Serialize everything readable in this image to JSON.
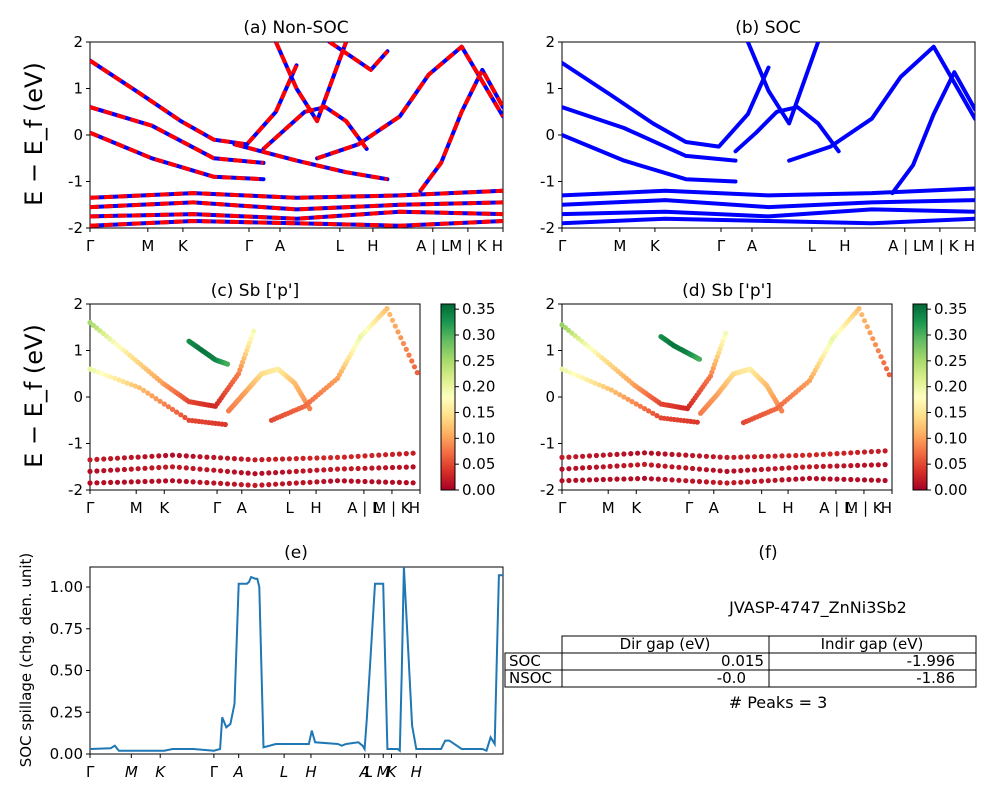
{
  "figure": {
    "band_axis_label": "E − E_f (eV)",
    "tick_labels": [
      "Γ",
      "M",
      "K",
      "Γ",
      "A",
      "L",
      "H",
      "A | L",
      "M | K",
      "H"
    ],
    "spillage_tick_labels": [
      "Γ",
      "M",
      "K",
      "Γ",
      "A",
      "L",
      "H",
      "A",
      "L",
      "M",
      "K",
      "H"
    ],
    "colors": {
      "soc_band": "#0000ff",
      "nsoc_band": "#ff0000",
      "spillage_line": "#1f77b4"
    }
  },
  "chart_data": [
    {
      "id": "a",
      "type": "line",
      "title": "(a) Non-SOC",
      "ylabel": "E − E_f (eV)",
      "ylim": [
        -2,
        2
      ],
      "yticks": [
        -2,
        -1,
        0,
        1,
        2
      ],
      "series": [
        {
          "style": "blue-red-dashed",
          "x": [
            0,
            0.12,
            0.22,
            0.3,
            0.38,
            0.45,
            0.5
          ],
          "y": [
            1.6,
            0.9,
            0.3,
            -0.1,
            -0.2,
            0.5,
            1.5
          ]
        },
        {
          "style": "blue-red-dashed",
          "x": [
            0,
            0.15,
            0.3,
            0.42
          ],
          "y": [
            0.6,
            0.2,
            -0.5,
            -0.6
          ]
        },
        {
          "style": "blue-red-dashed",
          "x": [
            0,
            0.15,
            0.3,
            0.42
          ],
          "y": [
            0.05,
            -0.5,
            -0.9,
            -0.95
          ]
        },
        {
          "style": "blue-red-dashed",
          "x": [
            0.42,
            0.47,
            0.52,
            0.57,
            0.62,
            0.67
          ],
          "y": [
            -0.3,
            0.1,
            0.5,
            0.6,
            0.3,
            -0.3
          ]
        },
        {
          "style": "blue-red-dashed",
          "x": [
            0.35,
            0.5,
            0.62,
            0.72
          ],
          "y": [
            -0.2,
            -0.55,
            -0.8,
            -0.95
          ]
        },
        {
          "style": "blue-red-dashed",
          "x": [
            0.55,
            0.65,
            0.75,
            0.82,
            0.9,
            1.0
          ],
          "y": [
            -0.5,
            -0.2,
            0.4,
            1.3,
            1.9,
            0.4
          ]
        },
        {
          "style": "blue-red-dashed",
          "x": [
            0.8,
            0.85,
            0.9,
            0.95,
            1.0
          ],
          "y": [
            -1.2,
            -0.6,
            0.5,
            1.4,
            0.6
          ]
        },
        {
          "style": "blue-red-dashed",
          "x": [
            0.45,
            0.5,
            0.55,
            0.62
          ],
          "y": [
            2.0,
            1.0,
            0.3,
            2.0
          ]
        },
        {
          "style": "blue-red-dashed",
          "x": [
            0.58,
            0.63,
            0.68,
            0.72
          ],
          "y": [
            2.0,
            1.7,
            1.4,
            1.8
          ]
        },
        {
          "style": "blue-red-dashed",
          "x": [
            0,
            0.25,
            0.5,
            0.75,
            1.0
          ],
          "y": [
            -1.35,
            -1.25,
            -1.35,
            -1.3,
            -1.2
          ]
        },
        {
          "style": "blue-red-dashed",
          "x": [
            0,
            0.25,
            0.5,
            0.75,
            1.0
          ],
          "y": [
            -1.55,
            -1.45,
            -1.6,
            -1.5,
            -1.45
          ]
        },
        {
          "style": "blue-red-dashed",
          "x": [
            0,
            0.25,
            0.5,
            0.75,
            1.0
          ],
          "y": [
            -1.75,
            -1.7,
            -1.8,
            -1.65,
            -1.7
          ]
        },
        {
          "style": "blue-red-dashed",
          "x": [
            0,
            0.25,
            0.5,
            0.75,
            1.0
          ],
          "y": [
            -1.95,
            -1.85,
            -1.9,
            -1.95,
            -1.85
          ]
        }
      ]
    },
    {
      "id": "b",
      "type": "line",
      "title": "(b) SOC",
      "ylabel": "",
      "ylim": [
        -2,
        2
      ],
      "yticks": [
        -2,
        -1,
        0,
        1,
        2
      ],
      "series": [
        {
          "style": "blue",
          "x": [
            0,
            0.12,
            0.22,
            0.3,
            0.38,
            0.45,
            0.5
          ],
          "y": [
            1.55,
            0.85,
            0.25,
            -0.15,
            -0.25,
            0.45,
            1.45
          ]
        },
        {
          "style": "blue",
          "x": [
            0,
            0.15,
            0.3,
            0.42
          ],
          "y": [
            0.6,
            0.15,
            -0.45,
            -0.55
          ]
        },
        {
          "style": "blue",
          "x": [
            0,
            0.15,
            0.3,
            0.42
          ],
          "y": [
            0.0,
            -0.55,
            -0.95,
            -1.0
          ]
        },
        {
          "style": "blue",
          "x": [
            0.42,
            0.47,
            0.52,
            0.57,
            0.62,
            0.67
          ],
          "y": [
            -0.35,
            0.05,
            0.5,
            0.6,
            0.25,
            -0.35
          ]
        },
        {
          "style": "blue",
          "x": [
            0.55,
            0.65,
            0.75,
            0.82,
            0.9,
            1.0
          ],
          "y": [
            -0.55,
            -0.25,
            0.35,
            1.25,
            1.9,
            0.35
          ]
        },
        {
          "style": "blue",
          "x": [
            0.8,
            0.85,
            0.9,
            0.95,
            1.0
          ],
          "y": [
            -1.25,
            -0.65,
            0.45,
            1.35,
            0.55
          ]
        },
        {
          "style": "blue",
          "x": [
            0.45,
            0.5,
            0.55,
            0.62
          ],
          "y": [
            2.0,
            0.95,
            0.25,
            2.0
          ]
        },
        {
          "style": "blue",
          "x": [
            0,
            0.25,
            0.5,
            0.75,
            1.0
          ],
          "y": [
            -1.3,
            -1.2,
            -1.3,
            -1.25,
            -1.15
          ]
        },
        {
          "style": "blue",
          "x": [
            0,
            0.25,
            0.5,
            0.75,
            1.0
          ],
          "y": [
            -1.5,
            -1.4,
            -1.55,
            -1.45,
            -1.4
          ]
        },
        {
          "style": "blue",
          "x": [
            0,
            0.25,
            0.5,
            0.75,
            1.0
          ],
          "y": [
            -1.7,
            -1.65,
            -1.75,
            -1.6,
            -1.65
          ]
        },
        {
          "style": "blue",
          "x": [
            0,
            0.25,
            0.5,
            0.75,
            1.0
          ],
          "y": [
            -1.9,
            -1.8,
            -1.85,
            -1.9,
            -1.8
          ]
        }
      ]
    },
    {
      "id": "c",
      "type": "scatter",
      "title": "(c)  Sb ['p']",
      "ylabel": "E − E_f (eV)",
      "ylim": [
        -2,
        2
      ],
      "yticks": [
        -2,
        -1,
        0,
        1,
        2
      ],
      "colorbar": {
        "min": 0.0,
        "max": 0.36,
        "ticks": [
          "0.00",
          "0.05",
          "0.10",
          "0.15",
          "0.20",
          "0.25",
          "0.30",
          "0.35"
        ],
        "colormap": "RdYlGn"
      },
      "series": [
        {
          "x": [
            0,
            0.12,
            0.22,
            0.3,
            0.38,
            0.45,
            0.5
          ],
          "y": [
            1.6,
            0.9,
            0.3,
            -0.1,
            -0.2,
            0.5,
            1.5
          ],
          "c": [
            0.25,
            0.15,
            0.1,
            0.05,
            0.03,
            0.08,
            0.2
          ]
        },
        {
          "x": [
            0,
            0.15,
            0.3,
            0.42
          ],
          "y": [
            0.6,
            0.2,
            -0.5,
            -0.6
          ],
          "c": [
            0.2,
            0.12,
            0.05,
            0.04
          ]
        },
        {
          "x": [
            0.42,
            0.47,
            0.52,
            0.57,
            0.62,
            0.67
          ],
          "y": [
            -0.3,
            0.1,
            0.5,
            0.6,
            0.3,
            -0.3
          ],
          "c": [
            0.08,
            0.1,
            0.14,
            0.16,
            0.12,
            0.08
          ]
        },
        {
          "x": [
            0.3,
            0.34,
            0.38,
            0.42
          ],
          "y": [
            1.2,
            1.0,
            0.8,
            0.7
          ],
          "c": [
            0.33,
            0.35,
            0.34,
            0.3
          ]
        },
        {
          "x": [
            0.55,
            0.65,
            0.75,
            0.82,
            0.9,
            1.0
          ],
          "y": [
            -0.5,
            -0.2,
            0.4,
            1.3,
            1.9,
            0.4
          ],
          "c": [
            0.05,
            0.07,
            0.1,
            0.2,
            0.12,
            0.06
          ]
        },
        {
          "x": [
            0,
            0.25,
            0.5,
            0.75,
            1.0
          ],
          "y": [
            -1.35,
            -1.25,
            -1.35,
            -1.3,
            -1.2
          ],
          "c": [
            0.02,
            0.01,
            0.02,
            0.03,
            0.02
          ]
        },
        {
          "x": [
            0,
            0.25,
            0.5,
            0.75,
            1.0
          ],
          "y": [
            -1.6,
            -1.5,
            -1.65,
            -1.55,
            -1.5
          ],
          "c": [
            0.01,
            0.02,
            0.01,
            0.02,
            0.01
          ]
        },
        {
          "x": [
            0,
            0.25,
            0.5,
            0.75,
            1.0
          ],
          "y": [
            -1.85,
            -1.8,
            -1.9,
            -1.8,
            -1.85
          ],
          "c": [
            0.01,
            0.01,
            0.02,
            0.01,
            0.01
          ]
        }
      ]
    },
    {
      "id": "d",
      "type": "scatter",
      "title": "(d) Sb ['p']",
      "ylabel": "",
      "ylim": [
        -2,
        2
      ],
      "yticks": [
        -2,
        -1,
        0,
        1,
        2
      ],
      "colorbar": {
        "min": 0.0,
        "max": 0.36,
        "ticks": [
          "0.00",
          "0.05",
          "0.10",
          "0.15",
          "0.20",
          "0.25",
          "0.30",
          "0.35"
        ],
        "colormap": "RdYlGn"
      },
      "series": [
        {
          "x": [
            0,
            0.12,
            0.22,
            0.3,
            0.38,
            0.45,
            0.5
          ],
          "y": [
            1.55,
            0.85,
            0.25,
            -0.15,
            -0.25,
            0.45,
            1.45
          ],
          "c": [
            0.26,
            0.15,
            0.1,
            0.05,
            0.03,
            0.08,
            0.2
          ]
        },
        {
          "x": [
            0,
            0.15,
            0.3,
            0.42
          ],
          "y": [
            0.6,
            0.15,
            -0.45,
            -0.55
          ],
          "c": [
            0.2,
            0.12,
            0.05,
            0.04
          ]
        },
        {
          "x": [
            0.42,
            0.47,
            0.52,
            0.57,
            0.62,
            0.67
          ],
          "y": [
            -0.35,
            0.05,
            0.5,
            0.6,
            0.25,
            -0.35
          ],
          "c": [
            0.08,
            0.1,
            0.14,
            0.16,
            0.12,
            0.08
          ]
        },
        {
          "x": [
            0.3,
            0.34,
            0.38,
            0.42
          ],
          "y": [
            1.3,
            1.1,
            0.95,
            0.8
          ],
          "c": [
            0.33,
            0.35,
            0.34,
            0.3
          ]
        },
        {
          "x": [
            0.55,
            0.65,
            0.75,
            0.82,
            0.9,
            1.0
          ],
          "y": [
            -0.55,
            -0.25,
            0.35,
            1.25,
            1.9,
            0.35
          ],
          "c": [
            0.05,
            0.07,
            0.1,
            0.2,
            0.12,
            0.06
          ]
        },
        {
          "x": [
            0,
            0.25,
            0.5,
            0.75,
            1.0
          ],
          "y": [
            -1.3,
            -1.2,
            -1.3,
            -1.25,
            -1.15
          ],
          "c": [
            0.02,
            0.01,
            0.02,
            0.03,
            0.02
          ]
        },
        {
          "x": [
            0,
            0.25,
            0.5,
            0.75,
            1.0
          ],
          "y": [
            -1.55,
            -1.45,
            -1.6,
            -1.5,
            -1.45
          ],
          "c": [
            0.01,
            0.02,
            0.01,
            0.02,
            0.01
          ]
        },
        {
          "x": [
            0,
            0.25,
            0.5,
            0.75,
            1.0
          ],
          "y": [
            -1.8,
            -1.75,
            -1.85,
            -1.75,
            -1.8
          ],
          "c": [
            0.01,
            0.01,
            0.02,
            0.01,
            0.01
          ]
        }
      ]
    },
    {
      "id": "e",
      "type": "line",
      "title": "(e)",
      "ylabel": "SOC spillage (chg. den. unit)",
      "ylim": [
        0,
        1.12
      ],
      "yticks": [
        "0.00",
        "0.25",
        "0.50",
        "0.75",
        "1.00"
      ],
      "x": [
        0,
        0.05,
        0.06,
        0.07,
        0.1,
        0.18,
        0.2,
        0.25,
        0.3,
        0.3,
        0.315,
        0.32,
        0.33,
        0.34,
        0.35,
        0.36,
        0.38,
        0.385,
        0.39,
        0.4,
        0.405,
        0.41,
        0.42,
        0.45,
        0.5,
        0.53,
        0.537,
        0.545,
        0.6,
        0.61,
        0.62,
        0.65,
        0.66,
        0.665,
        0.67,
        0.69,
        0.7,
        0.71,
        0.72,
        0.745,
        0.75,
        0.755,
        0.76,
        0.78,
        0.79,
        0.8,
        0.85,
        0.86,
        0.87,
        0.9,
        0.95,
        0.96,
        0.97,
        0.98,
        0.99,
        1.0
      ],
      "y": [
        0.03,
        0.035,
        0.05,
        0.02,
        0.02,
        0.02,
        0.03,
        0.03,
        0.02,
        0.02,
        0.03,
        0.22,
        0.16,
        0.18,
        0.3,
        1.02,
        1.02,
        1.03,
        1.06,
        1.05,
        1.05,
        1.0,
        0.04,
        0.06,
        0.06,
        0.06,
        0.14,
        0.07,
        0.06,
        0.05,
        0.06,
        0.07,
        0.05,
        0.03,
        0.2,
        1.02,
        1.02,
        1.02,
        0.03,
        0.03,
        0.02,
        0.5,
        1.12,
        0.17,
        0.03,
        0.03,
        0.03,
        0.08,
        0.08,
        0.03,
        0.03,
        0.02,
        0.1,
        0.06,
        1.07,
        1.07
      ]
    },
    {
      "id": "f",
      "type": "table",
      "title": "(f)",
      "subtitle": "JVASP-4747_ZnNi3Sb2",
      "columns": [
        "",
        "Dir gap (eV)",
        "Indir gap (eV)"
      ],
      "rows": [
        [
          "SOC",
          "0.015",
          "-1.996"
        ],
        [
          "NSOC",
          "-0.0",
          "-1.86"
        ]
      ],
      "footnote": "# Peaks = 3"
    }
  ]
}
